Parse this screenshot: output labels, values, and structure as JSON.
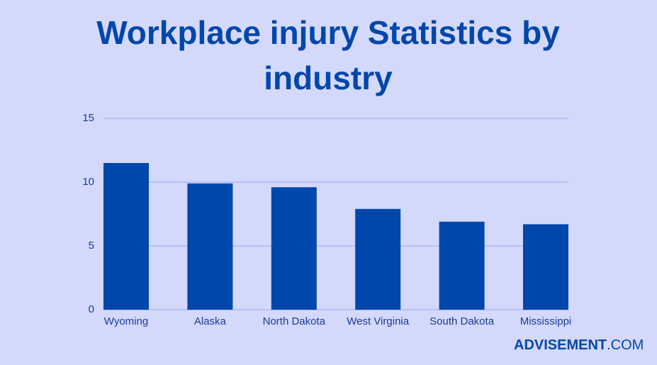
{
  "chart_data": {
    "type": "bar",
    "title": "Workplace injury Statistics by industry",
    "categories": [
      "Wyoming",
      "Alaska",
      "North Dakota",
      "West Virginia",
      "South Dakota",
      "Mississippi"
    ],
    "values": [
      11.5,
      9.9,
      9.6,
      7.9,
      6.9,
      6.7
    ],
    "color": "#0047ab",
    "ylim": [
      0,
      15
    ],
    "yticks": [
      0,
      5,
      10,
      15
    ],
    "grid": true
  },
  "logo": {
    "name": "ADVISEMENT",
    "suffix": ".COM"
  }
}
